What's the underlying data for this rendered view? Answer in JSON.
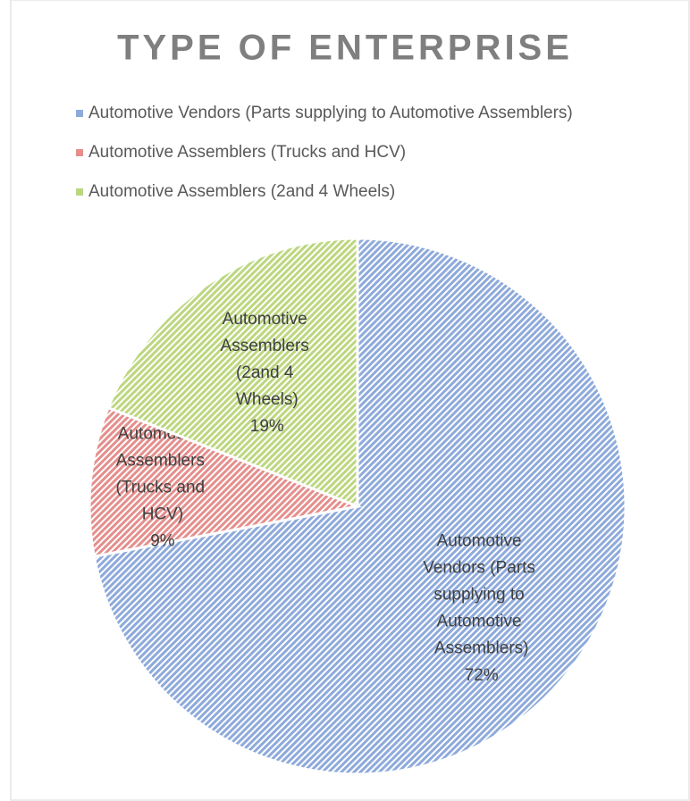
{
  "chart_data": {
    "type": "pie",
    "title": "TYPE OF ENTERPRISE",
    "categories": [
      "Automotive Vendors (Parts supplying to Automotive Assemblers)",
      "Automotive Assemblers  (Trucks and HCV)",
      "Automotive Assemblers  (2and 4 Wheels)"
    ],
    "values": [
      72,
      9,
      19
    ],
    "value_labels": [
      "72%",
      "9%",
      "19%"
    ],
    "colors": [
      "#8eaadb",
      "#e48f8d",
      "#bcd77f"
    ],
    "legend": "top"
  }
}
